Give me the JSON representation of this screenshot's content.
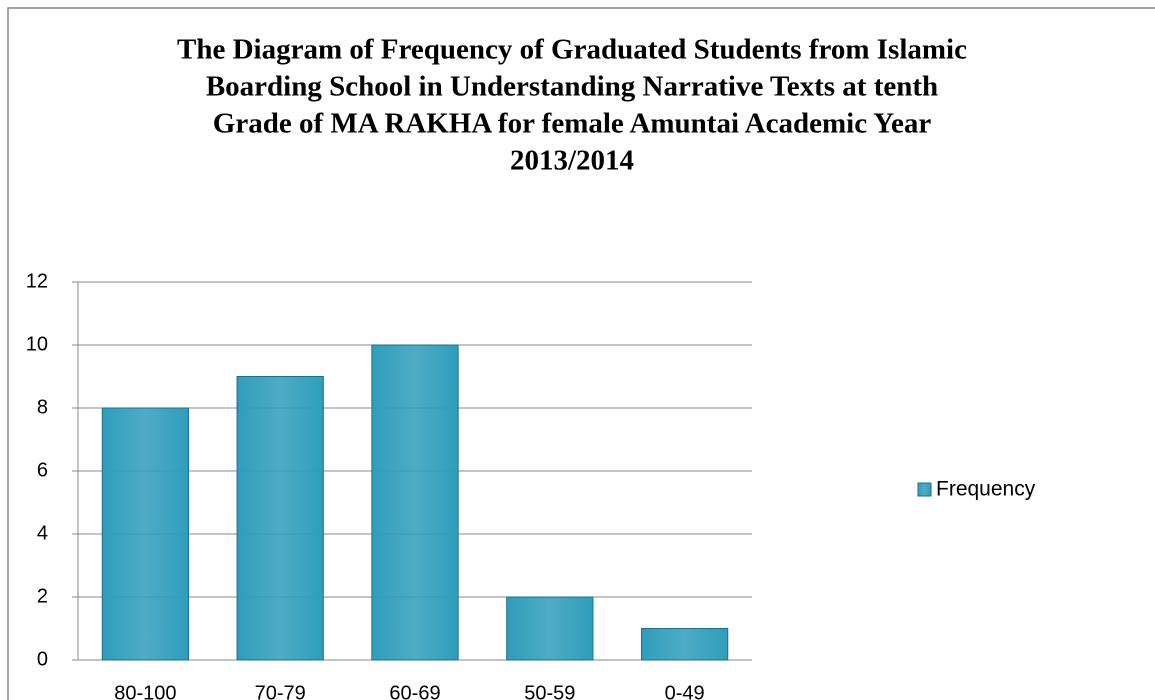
{
  "chart_data": {
    "type": "bar",
    "title": [
      "The Diagram of Frequency of Graduated Students from Islamic",
      "Boarding  School in Understanding  Narrative Texts at tenth",
      "Grade of MA RAKHA for female Amuntai Academic Year",
      "2013/2014"
    ],
    "categories": [
      "80-100",
      "70-79",
      "60-69",
      "50-59",
      "0-49"
    ],
    "series": [
      {
        "name": "Frequency",
        "color": "#2f9dbb",
        "values": [
          8,
          9,
          10,
          2,
          1
        ]
      }
    ],
    "ylim": [
      0,
      12
    ],
    "yticks": [
      0,
      2,
      4,
      6,
      8,
      10,
      12
    ],
    "grid": true,
    "legend": "right"
  }
}
